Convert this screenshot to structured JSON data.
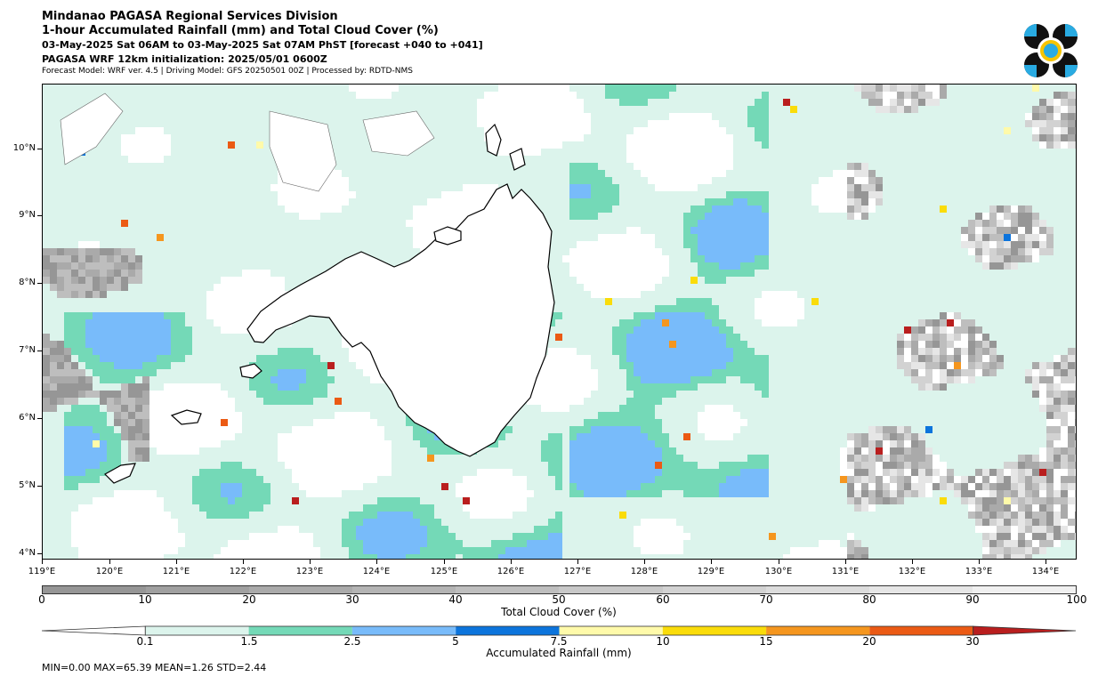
{
  "header": {
    "title": "Mindanao PAGASA Regional Services Division",
    "subtitle": "1-hour Accumulated Rainfall (mm) and Total Cloud Cover (%)",
    "period": "03-May-2025 Sat 06AM to 03-May-2025 Sat 07AM PhST [forecast +040 to +041]",
    "init": "PAGASA WRF 12km initialization: 2025/05/01 0600Z",
    "model_info": "Forecast Model: WRF ver. 4.5 | Driving Model: GFS 20250501 00Z | Processed by: RDTD-NMS"
  },
  "map": {
    "lat_labels": [
      "10°N",
      "9°N",
      "8°N",
      "7°N",
      "6°N",
      "5°N",
      "4°N"
    ],
    "lon_labels": [
      "119°E",
      "120°E",
      "121°E",
      "122°E",
      "123°E",
      "124°E",
      "125°E",
      "126°E",
      "127°E",
      "128°E",
      "129°E",
      "130°E",
      "131°E",
      "132°E",
      "133°E",
      "134°E"
    ],
    "background_color": "#dcf4ec"
  },
  "cloud_colorbar": {
    "title": "Total Cloud Cover (%)",
    "labels": [
      "0",
      "10",
      "20",
      "30",
      "40",
      "50",
      "60",
      "70",
      "80",
      "90",
      "100"
    ],
    "colors": [
      "#969696",
      "#a0a0a0",
      "#aaaaaa",
      "#b4b4b4",
      "#bebebe",
      "#c8c8c8",
      "#d2d2d2",
      "#dcdcdc",
      "#e6e6e6",
      "#f0f0f0"
    ]
  },
  "rain_colorbar": {
    "title": "Accumulated Rainfall (mm)",
    "labels": [
      "0.1",
      "1.5",
      "2.5",
      "5",
      "7.5",
      "10",
      "15",
      "20",
      "30"
    ],
    "colors": [
      "#dcf4ec",
      "#74d9b7",
      "#78bbfa",
      "#0c74dc",
      "#fffaaa",
      "#fadc0a",
      "#f5961e",
      "#eb5a14",
      "#b91e1e"
    ]
  },
  "stats": "MIN=0.00   MAX=65.39   MEAN=1.26   STD=2.44"
}
